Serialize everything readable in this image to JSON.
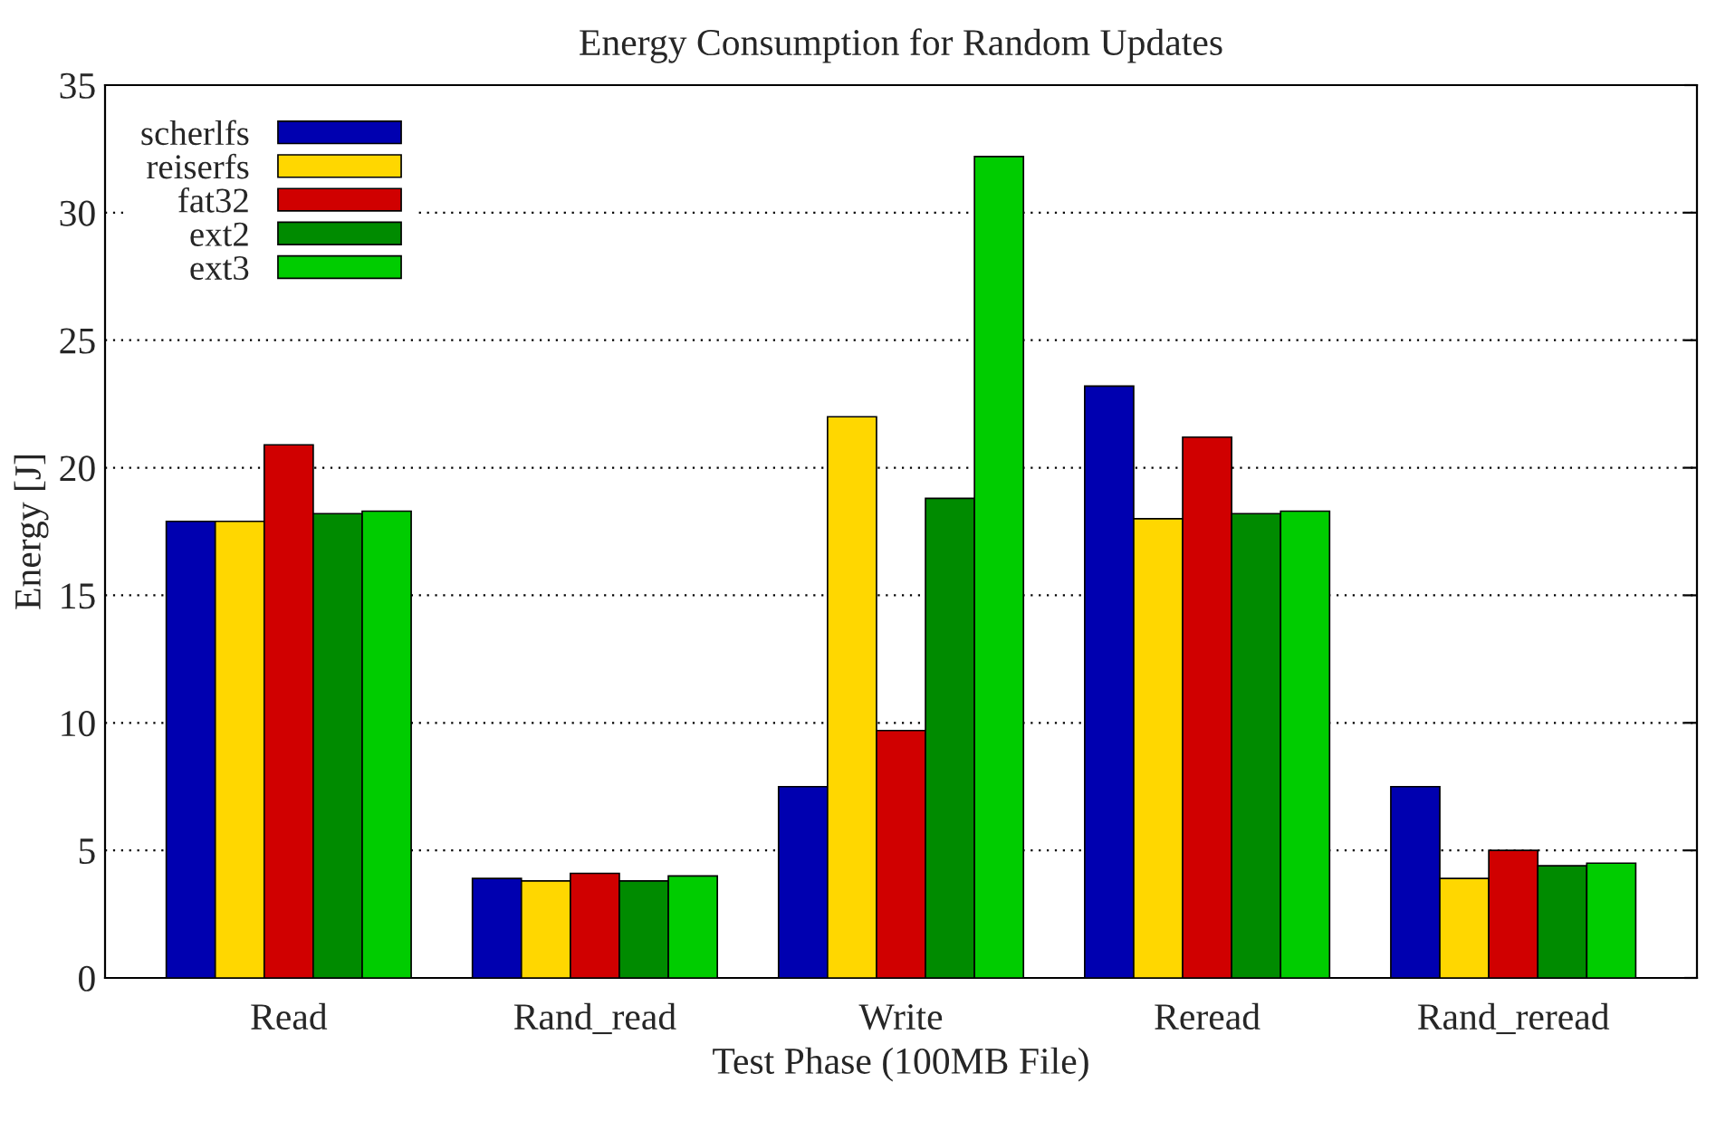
{
  "chart_data": {
    "type": "bar",
    "title": "Energy Consumption for Random Updates",
    "xlabel": "Test Phase (100MB File)",
    "ylabel": "Energy [J]",
    "categories": [
      "Read",
      "Rand_read",
      "Write",
      "Reread",
      "Rand_reread"
    ],
    "series": [
      {
        "name": "scherlfs",
        "color": "#0000b0",
        "values": [
          17.9,
          3.9,
          7.5,
          23.2,
          7.5
        ]
      },
      {
        "name": "reiserfs",
        "color": "#ffd700",
        "values": [
          17.9,
          3.8,
          22.0,
          18.0,
          3.9
        ]
      },
      {
        "name": "fat32",
        "color": "#d00000",
        "values": [
          20.9,
          4.1,
          9.7,
          21.2,
          5.0
        ]
      },
      {
        "name": "ext2",
        "color": "#008b00",
        "values": [
          18.2,
          3.8,
          18.8,
          18.2,
          4.4
        ]
      },
      {
        "name": "ext3",
        "color": "#00cc00",
        "values": [
          18.3,
          4.0,
          32.2,
          18.3,
          4.5
        ]
      }
    ],
    "ylim": [
      0,
      35
    ],
    "yticks": [
      0,
      5,
      10,
      15,
      20,
      25,
      30,
      35
    ],
    "grid": "y",
    "legend": "top left"
  }
}
